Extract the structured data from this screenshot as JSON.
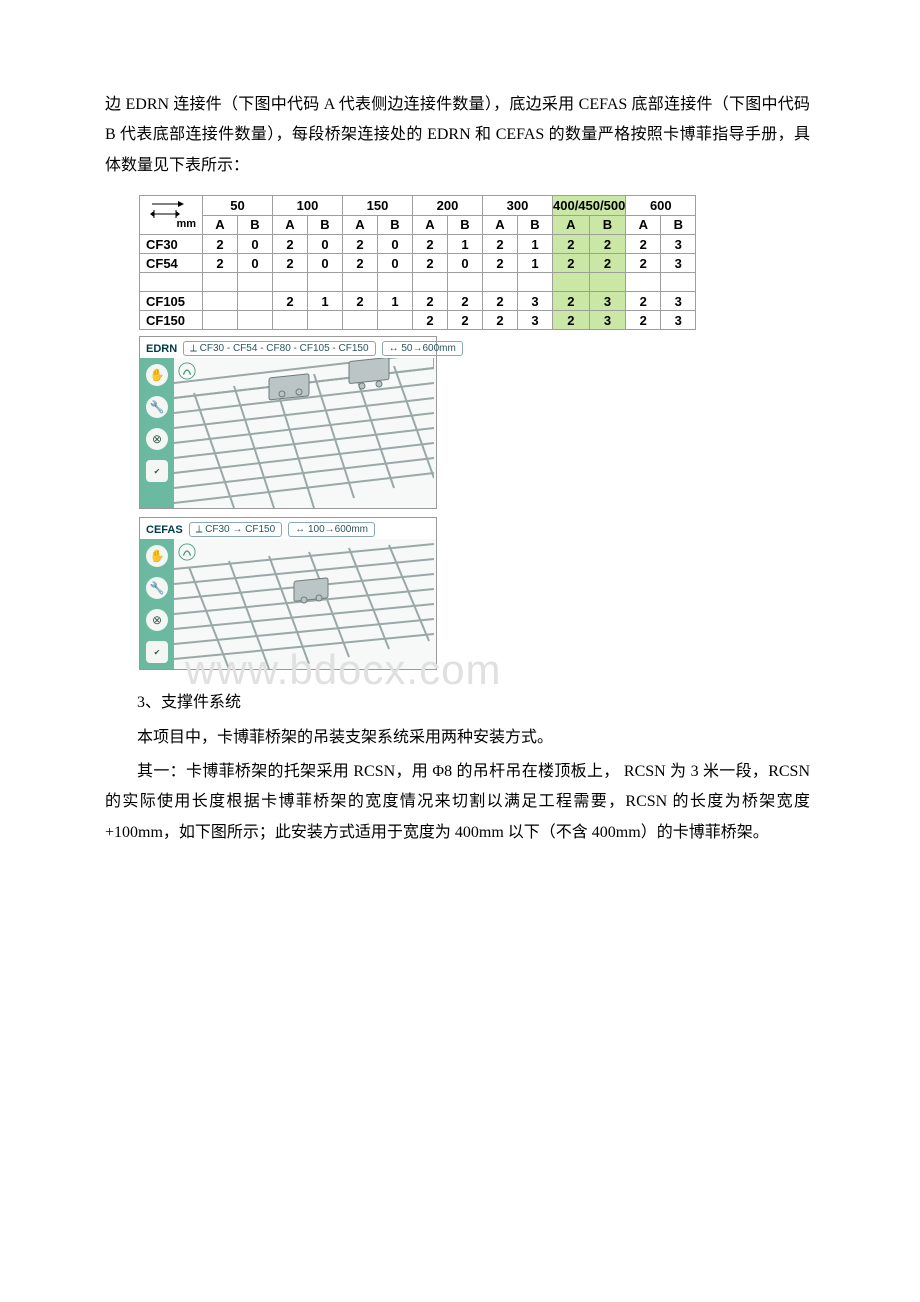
{
  "paragraphs": {
    "p1": "边 EDRN 连接件（下图中代码 A 代表侧边连接件数量），底边采用 CEFAS 底部连接件（下图中代码 B 代表底部连接件数量），每段桥架连接处的 EDRN 和 CEFAS 的数量严格按照卡博菲指导手册，具体数量见下表所示：",
    "section": "3、支撑件系统",
    "p2": "本项目中，卡博菲桥架的吊装支架系统采用两种安装方式。",
    "p3": "其一：卡博菲桥架的托架采用 RCSN，用 Φ8 的吊杆吊在楼顶板上， RCSN 为 3 米一段，RCSN 的实际使用长度根据卡博菲桥架的宽度情况来切割以满足工程需要，RCSN 的长度为桥架宽度+100mm，如下图所示；此安装方式适用于宽度为 400mm 以下（不含 400mm）的卡博菲桥架。"
  },
  "table": {
    "mm_label": "mm",
    "width_groups": [
      "50",
      "100",
      "150",
      "200",
      "300",
      "400/450/500",
      "600"
    ],
    "sub_cols": [
      "A",
      "B"
    ],
    "rows": [
      {
        "label": "CF30",
        "values": [
          "2",
          "0",
          "2",
          "0",
          "2",
          "0",
          "2",
          "1",
          "2",
          "1",
          "2",
          "2",
          "2",
          "3"
        ]
      },
      {
        "label": "CF54",
        "values": [
          "2",
          "0",
          "2",
          "0",
          "2",
          "0",
          "2",
          "0",
          "2",
          "1",
          "2",
          "2",
          "2",
          "3"
        ]
      },
      {
        "label": "",
        "values": [
          "",
          "",
          "",
          "",
          "",
          "",
          "",
          "",
          "",
          "",
          "",
          "",
          "",
          ""
        ]
      },
      {
        "label": "CF105",
        "values": [
          "",
          "",
          "2",
          "1",
          "2",
          "1",
          "2",
          "2",
          "2",
          "3",
          "2",
          "3",
          "2",
          "3"
        ]
      },
      {
        "label": "CF150",
        "values": [
          "",
          "",
          "",
          "",
          "",
          "",
          "2",
          "2",
          "2",
          "3",
          "2",
          "3",
          "2",
          "3"
        ]
      }
    ],
    "highlight_group_index": 5
  },
  "figures": {
    "edrn": {
      "name": "EDRN",
      "badge1": "⟂ CF30 - CF54 - CF80 - CF105 - CF150",
      "badge2": "↔ 50→600mm",
      "rail_icons": [
        "hand",
        "wrench",
        "screw",
        "cert"
      ],
      "height": 150,
      "mesh_color": "#9aa8a8",
      "clip_color": "#6e7a7a"
    },
    "cefas": {
      "name": "CEFAS",
      "badge1": "⟂ CF30 → CF150",
      "badge2": "↔ 100→600mm",
      "rail_icons": [
        "hand",
        "wrench",
        "screw",
        "cert"
      ],
      "height": 130,
      "mesh_color": "#9aa8a8",
      "clip_color": "#6e7a7a"
    }
  },
  "watermark": "www.bdocx.com",
  "colors": {
    "table_border": "#9e9e9e",
    "highlight_bg": "#cbe7a5",
    "rail_bg": "#6bb9a0",
    "badge_border": "#8aa8b0",
    "figure_title": "#003a4a"
  }
}
